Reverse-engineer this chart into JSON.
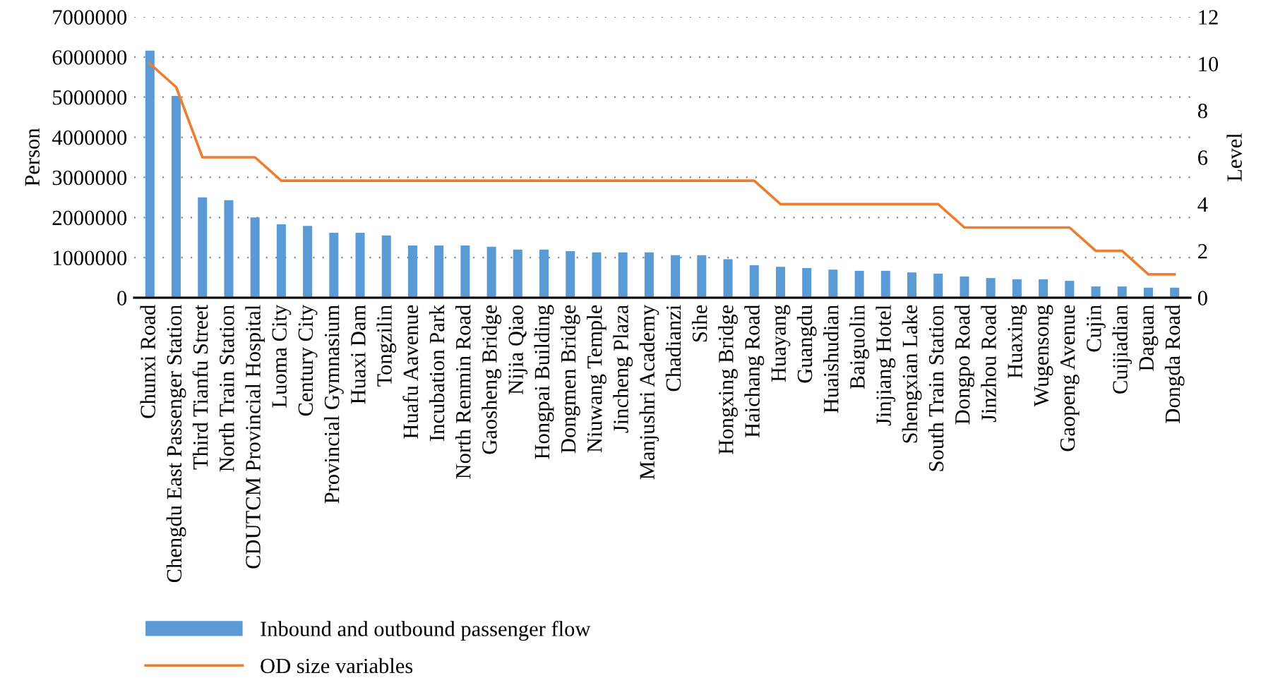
{
  "chart_data": {
    "type": "bar",
    "ylabel": "Person",
    "y2label": "Level",
    "categories": [
      "Chunxi Road",
      "Chengdu East Passenger Station",
      "Third Tianfu Street",
      "North Train Station",
      "CDUTCM Provincial Hospital",
      "Luoma City",
      "Century City",
      "Provincial Gymnasium",
      "Huaxi Dam",
      "Tongzilin",
      "Huafu Aavenue",
      "Incubation Park",
      "North Renmin Road",
      "Gaosheng Bridge",
      "Nijia Qiao",
      "Hongpai Building",
      "Dongmen Bridge",
      "Niuwang Temple",
      "Jincheng Plaza",
      "Manjushri Academy",
      "Chadianzi",
      "Sihe",
      "Hongxing Bridge",
      "Haichang Road",
      "Huayang",
      "Guangdu",
      "Huaishudian",
      "Baiguolin",
      "Jinjiang Hotel",
      "Shengxian Lake",
      "South Train Station",
      "Dongpo Road",
      "Jinzhou Road",
      "Huaxing",
      "Wugensong",
      "Gaopeng Avenue",
      "Cujin",
      "Cuijiadian",
      "Daguan",
      "Dongda Road"
    ],
    "series": [
      {
        "name": "Inbound and outbound passenger flow",
        "color": "#5b9bd5",
        "values": [
          6160000,
          5030000,
          2500000,
          2430000,
          2000000,
          1830000,
          1790000,
          1620000,
          1620000,
          1550000,
          1300000,
          1300000,
          1300000,
          1270000,
          1200000,
          1200000,
          1160000,
          1130000,
          1130000,
          1130000,
          1060000,
          1060000,
          960000,
          810000,
          770000,
          740000,
          700000,
          670000,
          670000,
          630000,
          600000,
          530000,
          490000,
          460000,
          460000,
          420000,
          280000,
          280000,
          250000,
          250000
        ]
      },
      {
        "name": "OD size variables",
        "type": "line",
        "axis": "y2",
        "color": "#ed7d31",
        "values": [
          10,
          9,
          6,
          6,
          6,
          5,
          5,
          5,
          5,
          5,
          5,
          5,
          5,
          5,
          5,
          5,
          5,
          5,
          5,
          5,
          5,
          5,
          5,
          5,
          4,
          4,
          4,
          4,
          4,
          4,
          4,
          3,
          3,
          3,
          3,
          3,
          2,
          2,
          1,
          1
        ]
      }
    ],
    "ylim": [
      0,
      7000000
    ],
    "yticks": [
      0,
      1000000,
      2000000,
      3000000,
      4000000,
      5000000,
      6000000,
      7000000
    ],
    "y2lim": [
      0,
      12
    ],
    "y2ticks": [
      0,
      2,
      4,
      6,
      8,
      10,
      12
    ],
    "grid": "y",
    "legend": "bottom left",
    "marker": "none",
    "line_style": "solid"
  }
}
